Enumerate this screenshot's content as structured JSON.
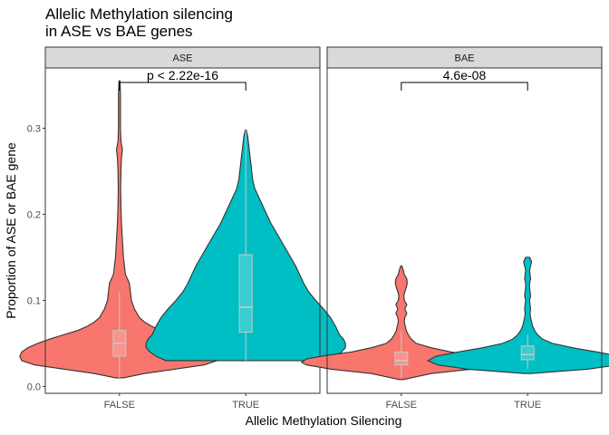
{
  "chart_data": {
    "type": "violin",
    "title_lines": [
      "Allelic Methylation silencing",
      "in ASE vs BAE genes"
    ],
    "xlabel": "Allelic Methylation Silencing",
    "ylabel": "Proportion of ASE or BAE gene",
    "categories": [
      "FALSE",
      "TRUE"
    ],
    "ylim": [
      -0.008,
      0.37
    ],
    "yticks": [
      0.0,
      0.1,
      0.2,
      0.3
    ],
    "ytick_labels": [
      "0.0",
      "0.1",
      "0.2",
      "0.3"
    ],
    "grid": false,
    "legend": "none",
    "fill_colors": {
      "FALSE": "#F8766D",
      "TRUE": "#00BFC4"
    },
    "panels": [
      {
        "name": "ASE",
        "pvalue": "p < 2.22e-16",
        "groups": [
          {
            "category": "FALSE",
            "box": {
              "lower_whisker": 0.01,
              "q1": 0.035,
              "median": 0.05,
              "q3": 0.065,
              "upper_whisker": 0.11
            },
            "density": [
              [
                0.01,
                0.04
              ],
              [
                0.015,
                0.25
              ],
              [
                0.02,
                0.55
              ],
              [
                0.025,
                0.85
              ],
              [
                0.03,
                0.98
              ],
              [
                0.035,
                1.0
              ],
              [
                0.04,
                0.98
              ],
              [
                0.045,
                0.92
              ],
              [
                0.05,
                0.82
              ],
              [
                0.055,
                0.7
              ],
              [
                0.06,
                0.56
              ],
              [
                0.065,
                0.42
              ],
              [
                0.07,
                0.32
              ],
              [
                0.075,
                0.25
              ],
              [
                0.08,
                0.2
              ],
              [
                0.09,
                0.15
              ],
              [
                0.1,
                0.12
              ],
              [
                0.11,
                0.11
              ],
              [
                0.12,
                0.1
              ],
              [
                0.13,
                0.06
              ],
              [
                0.14,
                0.05
              ],
              [
                0.15,
                0.04
              ],
              [
                0.17,
                0.03
              ],
              [
                0.19,
                0.02
              ],
              [
                0.21,
                0.015
              ],
              [
                0.23,
                0.012
              ],
              [
                0.25,
                0.015
              ],
              [
                0.265,
                0.02
              ],
              [
                0.275,
                0.03
              ],
              [
                0.285,
                0.015
              ],
              [
                0.3,
                0.01
              ],
              [
                0.32,
                0.01
              ],
              [
                0.34,
                0.01
              ],
              [
                0.355,
                0.005
              ]
            ]
          },
          {
            "category": "TRUE",
            "box": {
              "lower_whisker": 0.03,
              "q1": 0.063,
              "median": 0.092,
              "q3": 0.153,
              "upper_whisker": 0.298
            },
            "density": [
              [
                0.03,
                0.8
              ],
              [
                0.035,
                0.9
              ],
              [
                0.04,
                0.96
              ],
              [
                0.045,
                1.0
              ],
              [
                0.05,
                1.0
              ],
              [
                0.055,
                0.98
              ],
              [
                0.06,
                0.94
              ],
              [
                0.07,
                0.9
              ],
              [
                0.08,
                0.85
              ],
              [
                0.09,
                0.78
              ],
              [
                0.1,
                0.7
              ],
              [
                0.11,
                0.63
              ],
              [
                0.12,
                0.58
              ],
              [
                0.13,
                0.54
              ],
              [
                0.14,
                0.5
              ],
              [
                0.15,
                0.45
              ],
              [
                0.16,
                0.4
              ],
              [
                0.17,
                0.35
              ],
              [
                0.18,
                0.3
              ],
              [
                0.19,
                0.25
              ],
              [
                0.2,
                0.21
              ],
              [
                0.21,
                0.17
              ],
              [
                0.22,
                0.13
              ],
              [
                0.23,
                0.09
              ],
              [
                0.24,
                0.07
              ],
              [
                0.25,
                0.06
              ],
              [
                0.26,
                0.05
              ],
              [
                0.27,
                0.04
              ],
              [
                0.28,
                0.03
              ],
              [
                0.29,
                0.02
              ],
              [
                0.298,
                0.005
              ]
            ]
          }
        ]
      },
      {
        "name": "BAE",
        "pvalue": "4.6e-08",
        "groups": [
          {
            "category": "FALSE",
            "box": {
              "lower_whisker": 0.01,
              "q1": 0.025,
              "median": 0.03,
              "q3": 0.04,
              "upper_whisker": 0.065
            },
            "density": [
              [
                0.008,
                0.02
              ],
              [
                0.015,
                0.3
              ],
              [
                0.02,
                0.7
              ],
              [
                0.025,
                0.95
              ],
              [
                0.028,
                1.0
              ],
              [
                0.032,
                0.95
              ],
              [
                0.036,
                0.75
              ],
              [
                0.04,
                0.5
              ],
              [
                0.045,
                0.3
              ],
              [
                0.05,
                0.15
              ],
              [
                0.055,
                0.1
              ],
              [
                0.06,
                0.07
              ],
              [
                0.065,
                0.05
              ],
              [
                0.07,
                0.04
              ],
              [
                0.075,
                0.03
              ],
              [
                0.08,
                0.035
              ],
              [
                0.085,
                0.055
              ],
              [
                0.09,
                0.035
              ],
              [
                0.095,
                0.055
              ],
              [
                0.1,
                0.03
              ],
              [
                0.105,
                0.025
              ],
              [
                0.11,
                0.035
              ],
              [
                0.115,
                0.05
              ],
              [
                0.12,
                0.06
              ],
              [
                0.125,
                0.055
              ],
              [
                0.13,
                0.03
              ],
              [
                0.135,
                0.02
              ],
              [
                0.14,
                0.005
              ]
            ]
          },
          {
            "category": "TRUE",
            "box": {
              "lower_whisker": 0.02,
              "q1": 0.031,
              "median": 0.037,
              "q3": 0.047,
              "upper_whisker": 0.06
            },
            "density": [
              [
                0.015,
                0.03
              ],
              [
                0.02,
                0.6
              ],
              [
                0.025,
                0.9
              ],
              [
                0.03,
                1.0
              ],
              [
                0.035,
                0.92
              ],
              [
                0.04,
                0.7
              ],
              [
                0.045,
                0.45
              ],
              [
                0.05,
                0.25
              ],
              [
                0.055,
                0.15
              ],
              [
                0.06,
                0.1
              ],
              [
                0.065,
                0.07
              ],
              [
                0.07,
                0.05
              ],
              [
                0.075,
                0.04
              ],
              [
                0.08,
                0.03
              ],
              [
                0.085,
                0.025
              ],
              [
                0.09,
                0.03
              ],
              [
                0.095,
                0.025
              ],
              [
                0.1,
                0.02
              ],
              [
                0.105,
                0.03
              ],
              [
                0.11,
                0.025
              ],
              [
                0.115,
                0.02
              ],
              [
                0.12,
                0.02
              ],
              [
                0.125,
                0.03
              ],
              [
                0.13,
                0.025
              ],
              [
                0.135,
                0.02
              ],
              [
                0.14,
                0.03
              ],
              [
                0.145,
                0.04
              ],
              [
                0.15,
                0.02
              ]
            ]
          }
        ]
      }
    ]
  }
}
